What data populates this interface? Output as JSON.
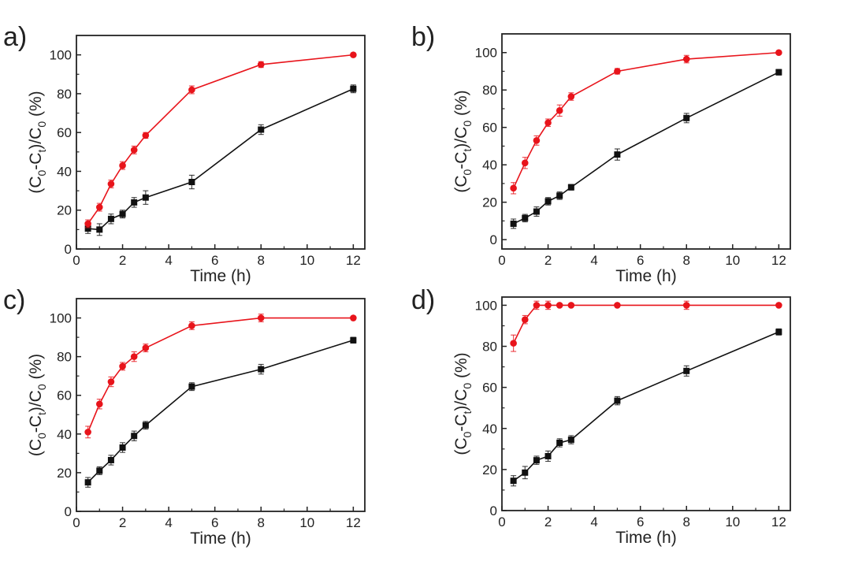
{
  "figure_id": "figure-4-panel",
  "colors": {
    "series_black": "#111111",
    "series_red": "#e8141b",
    "axis": "#222222"
  },
  "chart_data": [
    {
      "type": "line",
      "panel_label": "a)",
      "xlabel": "Time (h)",
      "ylabel": {
        "prefix": "(C",
        "sub1": "0",
        "mid": "-C",
        "sub2": "t",
        "div": ")/C",
        "sub3": "0",
        "suffix": " (%)"
      },
      "xlim": [
        0,
        12.5
      ],
      "ylim": [
        0,
        110
      ],
      "xticks": [
        0,
        2,
        4,
        6,
        8,
        10,
        12
      ],
      "yticks": [
        0,
        20,
        40,
        60,
        80,
        100
      ],
      "x": [
        0.5,
        1,
        1.5,
        2,
        2.5,
        3,
        5,
        8,
        12
      ],
      "series": [
        {
          "name": "black-squares",
          "marker": "square",
          "color": "#111111",
          "values": [
            10.5,
            10,
            15.5,
            18,
            24,
            26.5,
            34.5,
            61.5,
            82.5
          ],
          "errors": [
            2.5,
            3,
            2.5,
            2,
            2.5,
            3.5,
            3.5,
            2.5,
            2
          ]
        },
        {
          "name": "red-circles",
          "marker": "circle",
          "color": "#e8141b",
          "values": [
            13,
            21.5,
            33.5,
            43,
            51,
            58.5,
            82,
            95,
            100
          ],
          "errors": [
            2,
            2,
            2,
            2,
            2,
            1.5,
            2,
            1.5,
            0
          ]
        }
      ]
    },
    {
      "type": "line",
      "panel_label": "b)",
      "xlabel": "Time (h)",
      "ylabel": {
        "prefix": "(C",
        "sub1": "0",
        "mid": "-C",
        "sub2": "t",
        "div": ")/C",
        "sub3": "0",
        "suffix": " (%)"
      },
      "xlim": [
        0,
        12.5
      ],
      "ylim": [
        -5,
        110
      ],
      "xticks": [
        0,
        2,
        4,
        6,
        8,
        10,
        12
      ],
      "yticks": [
        0,
        20,
        40,
        60,
        80,
        100
      ],
      "x": [
        0.5,
        1,
        1.5,
        2,
        2.5,
        3,
        5,
        8,
        12
      ],
      "series": [
        {
          "name": "black-squares",
          "marker": "square",
          "color": "#111111",
          "values": [
            8.5,
            11.5,
            15,
            20.5,
            23.5,
            28,
            45.5,
            65,
            89.5
          ],
          "errors": [
            2.5,
            2,
            2.5,
            2,
            2,
            1.5,
            3,
            2.5,
            1.5
          ]
        },
        {
          "name": "red-circles",
          "marker": "circle",
          "color": "#e8141b",
          "values": [
            27.5,
            41,
            53,
            62.5,
            69,
            76.5,
            90,
            96.5,
            100
          ],
          "errors": [
            3,
            3,
            2.5,
            2,
            3,
            2,
            1.5,
            2,
            0
          ]
        }
      ]
    },
    {
      "type": "line",
      "panel_label": "c)",
      "xlabel": "Time (h)",
      "ylabel": {
        "prefix": "(C",
        "sub1": "0",
        "mid": "-C",
        "sub2": "t",
        "div": ")/C",
        "sub3": "0",
        "suffix": " (%)"
      },
      "xlim": [
        0,
        12.5
      ],
      "ylim": [
        0,
        110
      ],
      "xticks": [
        0,
        2,
        4,
        6,
        8,
        10,
        12
      ],
      "yticks": [
        0,
        20,
        40,
        60,
        80,
        100
      ],
      "x": [
        0.5,
        1,
        1.5,
        2,
        2.5,
        3,
        5,
        8,
        12
      ],
      "series": [
        {
          "name": "black-squares",
          "marker": "square",
          "color": "#111111",
          "values": [
            15,
            21,
            26.5,
            33,
            39,
            44.5,
            64.5,
            73.5,
            88.5
          ],
          "errors": [
            2.5,
            2,
            2.5,
            2.5,
            2.5,
            2,
            2,
            2.5,
            1.5
          ]
        },
        {
          "name": "red-circles",
          "marker": "circle",
          "color": "#e8141b",
          "values": [
            41,
            55.5,
            67,
            75,
            80,
            84.5,
            96,
            100,
            100
          ],
          "errors": [
            3,
            2.5,
            2.5,
            2,
            2.5,
            2,
            2,
            2,
            0
          ]
        }
      ]
    },
    {
      "type": "line",
      "panel_label": "d)",
      "xlabel": "Time (h)",
      "ylabel": {
        "prefix": "(C",
        "sub1": "0",
        "mid": "-C",
        "sub2": "t",
        "div": ")/C",
        "sub3": "0",
        "suffix": " (%)"
      },
      "xlim": [
        0,
        12.5
      ],
      "ylim": [
        0,
        104
      ],
      "xticks": [
        0,
        2,
        4,
        6,
        8,
        10,
        12
      ],
      "yticks": [
        0,
        20,
        40,
        60,
        80,
        100
      ],
      "x": [
        0.5,
        1,
        1.5,
        2,
        2.5,
        3,
        5,
        8,
        12
      ],
      "series": [
        {
          "name": "black-squares",
          "marker": "square",
          "color": "#111111",
          "values": [
            14.5,
            18.5,
            24.5,
            26.5,
            33,
            34.5,
            53.5,
            68,
            87
          ],
          "errors": [
            2.5,
            3,
            2,
            2.5,
            2,
            2,
            2,
            2.5,
            1.5
          ]
        },
        {
          "name": "red-circles",
          "marker": "circle",
          "color": "#e8141b",
          "values": [
            81.5,
            93,
            100,
            100,
            100,
            100,
            100,
            100,
            100
          ],
          "errors": [
            4,
            2,
            2,
            2,
            0,
            0,
            0,
            2,
            0
          ]
        }
      ]
    }
  ]
}
